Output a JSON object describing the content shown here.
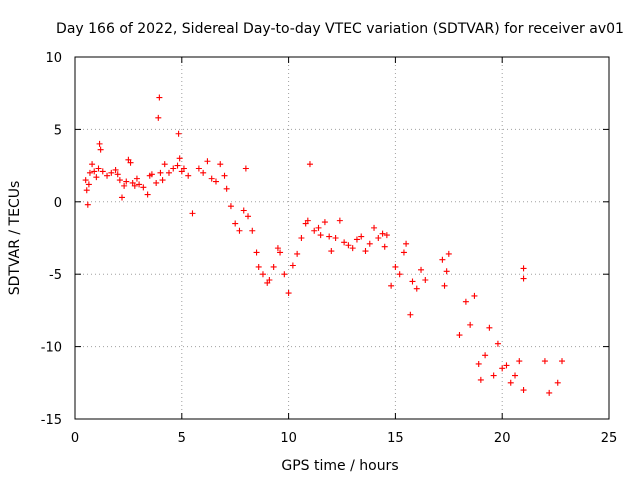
{
  "chart_data": {
    "type": "scatter",
    "title": "Day 166 of 2022, Sidereal Day-to-day VTEC variation (SDTVAR) for receiver av01",
    "xlabel": "GPS time / hours",
    "ylabel": "SDTVAR / TECUs",
    "xlim": [
      0,
      25
    ],
    "ylim": [
      -15,
      10
    ],
    "xticks": [
      0,
      5,
      10,
      15,
      20,
      25
    ],
    "yticks": [
      -15,
      -10,
      -5,
      0,
      5,
      10
    ],
    "xtick_labels": [
      "0",
      "5",
      "10",
      "15",
      "20",
      "25"
    ],
    "ytick_labels": [
      "-15",
      "-10",
      "-5",
      "0",
      "5",
      "10"
    ],
    "grid": true,
    "marker": "+",
    "color": "#ff0000",
    "series": [
      {
        "name": "SDTVAR",
        "x": [
          0.5,
          0.55,
          0.6,
          0.65,
          0.7,
          0.8,
          0.9,
          1.0,
          1.1,
          1.15,
          1.2,
          1.3,
          1.5,
          1.7,
          1.9,
          2.0,
          2.1,
          2.2,
          2.3,
          2.4,
          2.5,
          2.6,
          2.7,
          2.8,
          2.9,
          3.0,
          3.2,
          3.4,
          3.5,
          3.6,
          3.8,
          3.9,
          3.95,
          4.0,
          4.1,
          4.2,
          4.4,
          4.6,
          4.8,
          4.85,
          4.9,
          5.0,
          5.1,
          5.3,
          5.5,
          5.8,
          6.0,
          6.2,
          6.4,
          6.6,
          6.8,
          7.0,
          7.1,
          7.3,
          7.5,
          7.7,
          7.9,
          8.0,
          8.1,
          8.3,
          8.5,
          8.6,
          8.8,
          9.0,
          9.1,
          9.3,
          9.5,
          9.6,
          9.8,
          10.0,
          10.2,
          10.4,
          10.6,
          10.8,
          10.9,
          11.0,
          11.2,
          11.4,
          11.5,
          11.7,
          11.9,
          12.0,
          12.2,
          12.4,
          12.6,
          12.8,
          13.0,
          13.2,
          13.4,
          13.6,
          13.8,
          14.0,
          14.2,
          14.4,
          14.5,
          14.6,
          14.8,
          15.0,
          15.2,
          15.4,
          15.5,
          15.7,
          15.8,
          16.0,
          16.2,
          16.4,
          17.2,
          17.3,
          17.4,
          17.5,
          18.0,
          18.3,
          18.5,
          18.7,
          18.9,
          19.0,
          19.2,
          19.4,
          19.6,
          19.8,
          20.0,
          20.2,
          20.4,
          20.6,
          20.8,
          21.0,
          21.0,
          21.0,
          22.0,
          22.2,
          22.6,
          22.8
        ],
        "y": [
          1.5,
          0.8,
          -0.2,
          1.2,
          2.0,
          2.6,
          2.1,
          1.7,
          2.3,
          4.0,
          3.6,
          2.1,
          1.8,
          2.0,
          2.2,
          1.9,
          1.5,
          0.3,
          1.1,
          1.4,
          2.9,
          2.7,
          1.3,
          1.1,
          1.6,
          1.2,
          1.0,
          0.5,
          1.8,
          1.9,
          1.3,
          5.8,
          7.2,
          2.0,
          1.5,
          2.6,
          2.0,
          2.3,
          2.5,
          4.7,
          3.0,
          2.1,
          2.3,
          1.8,
          -0.8,
          2.3,
          2.0,
          2.8,
          1.6,
          1.4,
          2.6,
          1.8,
          0.9,
          -0.3,
          -1.5,
          -2.0,
          -0.6,
          2.3,
          -1.0,
          -2.0,
          -3.5,
          -4.5,
          -5.0,
          -5.6,
          -5.4,
          -4.5,
          -3.2,
          -3.5,
          -5.0,
          -6.3,
          -4.4,
          -3.6,
          -2.5,
          -1.5,
          -1.3,
          2.6,
          -2.0,
          -1.8,
          -2.3,
          -1.4,
          -2.4,
          -3.4,
          -2.5,
          -1.3,
          -2.8,
          -3.0,
          -3.2,
          -2.6,
          -2.4,
          -3.4,
          -2.9,
          -1.8,
          -2.5,
          -2.2,
          -3.1,
          -2.3,
          -5.8,
          -4.5,
          -5.0,
          -3.5,
          -2.9,
          -7.8,
          -5.5,
          -6.0,
          -4.7,
          -5.4,
          -4.0,
          -5.8,
          -4.8,
          -3.6,
          -9.2,
          -6.9,
          -8.5,
          -6.5,
          -11.2,
          -12.3,
          -10.6,
          -8.7,
          -12.0,
          -9.8,
          -11.5,
          -11.3,
          -12.5,
          -12.0,
          -11.0,
          -13.0,
          -4.6,
          -5.3,
          -11.0,
          -13.2,
          -12.5,
          -11.0
        ]
      }
    ]
  }
}
